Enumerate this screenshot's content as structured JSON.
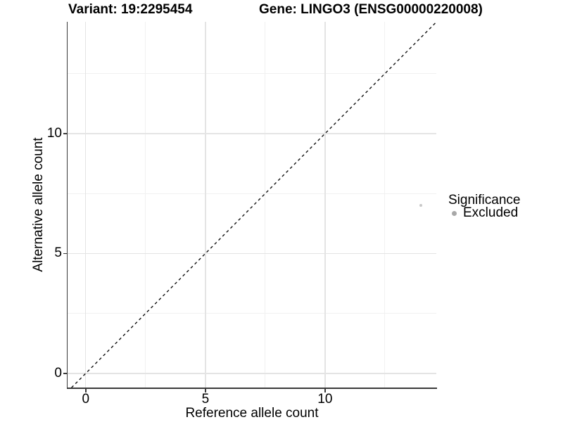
{
  "chart_data": {
    "type": "scatter",
    "titles": [
      "Variant: 19:2295454",
      "Gene: LINGO3 (ENSG00000220008)"
    ],
    "xlabel": "Reference allele count",
    "ylabel": "Alternative allele count",
    "xlim": [
      -0.76,
      14.65
    ],
    "ylim": [
      -0.62,
      14.66
    ],
    "x_major_ticks": [
      0,
      5,
      10
    ],
    "y_major_ticks": [
      0,
      5,
      10
    ],
    "x_minor_gridlines": [
      2.5,
      7.5,
      12.5
    ],
    "y_minor_gridlines": [
      2.5,
      7.5,
      12.5
    ],
    "grid": true,
    "points": [
      {
        "x": 14,
        "y": 7,
        "series": "Excluded",
        "color": "#c8c8c8",
        "diameter": 4
      }
    ],
    "identity_line": {
      "slope": 1,
      "intercept": 0,
      "style": "dashed",
      "color": "#111111"
    },
    "legend": {
      "title": "Significance",
      "position": "right",
      "items": [
        {
          "label": "Excluded",
          "color": "#a8a8a8",
          "key_diameter": 7
        }
      ]
    },
    "colors": {
      "grid_major": "#e4e4e4",
      "grid_minor": "#f1f1f1",
      "axis": "#3a3a3a",
      "text": "#000000"
    }
  }
}
